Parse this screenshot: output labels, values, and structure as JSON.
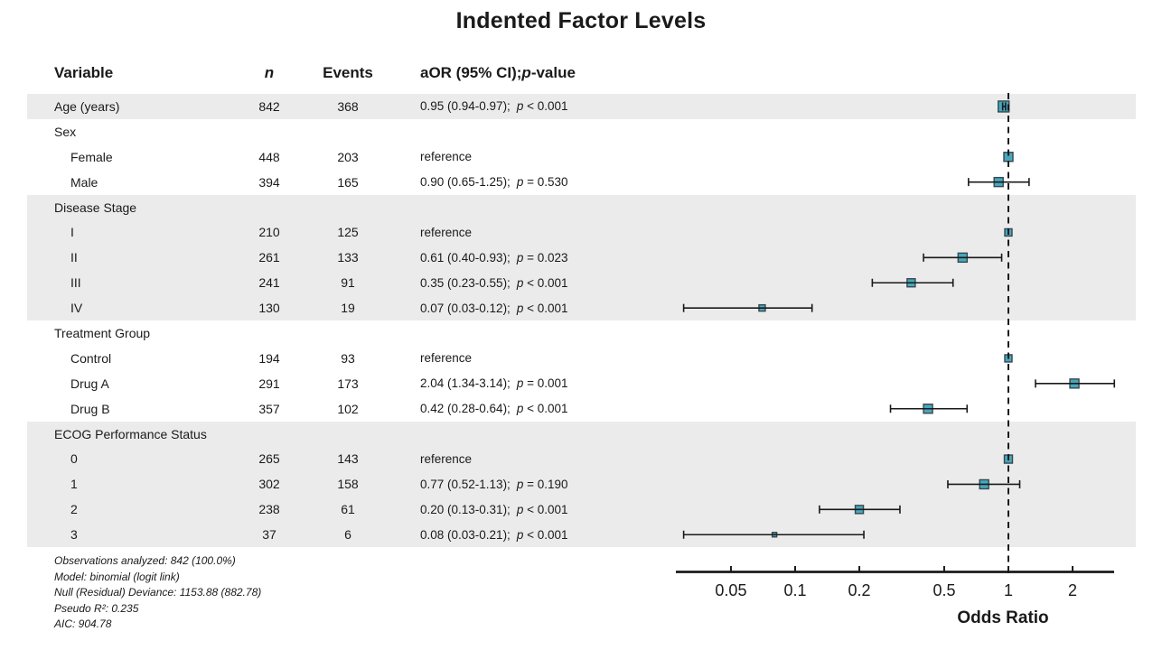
{
  "title": "Indented Factor Levels",
  "columns": {
    "variable": "Variable",
    "n": "n",
    "events": "Events",
    "estimate_prefix": "aOR (95% CI); ",
    "estimate_p": "p",
    "estimate_suffix": "-value"
  },
  "colors": {
    "marker_fill": "#46a8bd",
    "marker_border": "#37474f",
    "band": "#ebebeb",
    "line": "#1a1a1a"
  },
  "chart_data": {
    "type": "forest",
    "x_scale": "log10",
    "xlabel": "Odds Ratio",
    "x_ticks": [
      0.05,
      0.1,
      0.2,
      0.5,
      1,
      2
    ],
    "x_range": [
      0.028,
      3.14
    ],
    "reference_line": 1,
    "rows": [
      {
        "label": "Age (years)",
        "indent": 0,
        "n": "842",
        "events": "368",
        "est": "0.95 (0.94-0.97);",
        "p": "< 0.001",
        "or": 0.95,
        "lo": 0.94,
        "hi": 0.97,
        "size": 12,
        "shaded": true
      },
      {
        "label": "Sex",
        "indent": 0,
        "group": true,
        "shaded": false
      },
      {
        "label": "Female",
        "indent": 1,
        "n": "448",
        "events": "203",
        "est": "reference",
        "ref": true,
        "or": 1,
        "size": 10,
        "shaded": false
      },
      {
        "label": "Male",
        "indent": 1,
        "n": "394",
        "events": "165",
        "est": "0.90 (0.65-1.25);",
        "p": "= 0.530",
        "or": 0.9,
        "lo": 0.65,
        "hi": 1.25,
        "size": 10,
        "shaded": false
      },
      {
        "label": "Disease Stage",
        "indent": 0,
        "group": true,
        "shaded": true
      },
      {
        "label": "I",
        "indent": 1,
        "n": "210",
        "events": "125",
        "est": "reference",
        "ref": true,
        "or": 1,
        "size": 8,
        "shaded": true
      },
      {
        "label": "II",
        "indent": 1,
        "n": "261",
        "events": "133",
        "est": "0.61 (0.40-0.93);",
        "p": "= 0.023",
        "or": 0.61,
        "lo": 0.4,
        "hi": 0.93,
        "size": 10,
        "shaded": true
      },
      {
        "label": "III",
        "indent": 1,
        "n": "241",
        "events": "91",
        "est": "0.35 (0.23-0.55);",
        "p": "< 0.001",
        "or": 0.35,
        "lo": 0.23,
        "hi": 0.55,
        "size": 9,
        "shaded": true
      },
      {
        "label": "IV",
        "indent": 1,
        "n": "130",
        "events": "19",
        "est": "0.07 (0.03-0.12);",
        "p": "< 0.001",
        "or": 0.07,
        "lo": 0.03,
        "hi": 0.12,
        "size": 7,
        "shaded": true
      },
      {
        "label": "Treatment Group",
        "indent": 0,
        "group": true,
        "shaded": false
      },
      {
        "label": "Control",
        "indent": 1,
        "n": "194",
        "events": "93",
        "est": "reference",
        "ref": true,
        "or": 1,
        "size": 8,
        "shaded": false
      },
      {
        "label": "Drug A",
        "indent": 1,
        "n": "291",
        "events": "173",
        "est": "2.04 (1.34-3.14);",
        "p": "= 0.001",
        "or": 2.04,
        "lo": 1.34,
        "hi": 3.14,
        "size": 10,
        "shaded": false
      },
      {
        "label": "Drug B",
        "indent": 1,
        "n": "357",
        "events": "102",
        "est": "0.42 (0.28-0.64);",
        "p": "< 0.001",
        "or": 0.42,
        "lo": 0.28,
        "hi": 0.64,
        "size": 10,
        "shaded": false
      },
      {
        "label": "ECOG Performance Status",
        "indent": 0,
        "group": true,
        "shaded": true
      },
      {
        "label": "0",
        "indent": 1,
        "n": "265",
        "events": "143",
        "est": "reference",
        "ref": true,
        "or": 1,
        "size": 9,
        "shaded": true
      },
      {
        "label": "1",
        "indent": 1,
        "n": "302",
        "events": "158",
        "est": "0.77 (0.52-1.13);",
        "p": "= 0.190",
        "or": 0.77,
        "lo": 0.52,
        "hi": 1.13,
        "size": 10,
        "shaded": true
      },
      {
        "label": "2",
        "indent": 1,
        "n": "238",
        "events": "61",
        "est": "0.20 (0.13-0.31);",
        "p": "< 0.001",
        "or": 0.2,
        "lo": 0.13,
        "hi": 0.31,
        "size": 9,
        "shaded": true
      },
      {
        "label": "3",
        "indent": 1,
        "n": "37",
        "events": "6",
        "est": "0.08 (0.03-0.21);",
        "p": "< 0.001",
        "or": 0.08,
        "lo": 0.03,
        "hi": 0.21,
        "size": 5,
        "shaded": true
      }
    ]
  },
  "footnotes": [
    "Observations analyzed: 842 (100.0%)",
    "Model: binomial (logit link)",
    "Null (Residual) Deviance: 1153.88 (882.78)",
    "Pseudo R²: 0.235",
    "AIC: 904.78"
  ]
}
